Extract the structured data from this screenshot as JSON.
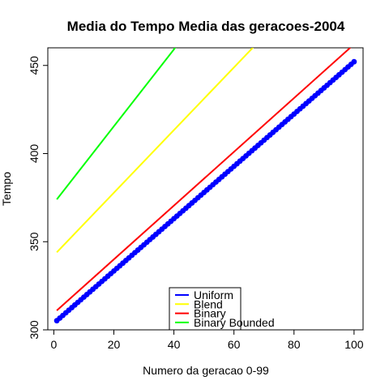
{
  "chart_data": {
    "type": "line",
    "title": "Media do Tempo Media das geracoes-2004",
    "xlabel": "Numero da geracao 0-99",
    "ylabel": "Tempo",
    "xlim": [
      -2,
      103
    ],
    "ylim": [
      300,
      460
    ],
    "xticks": [
      0,
      20,
      40,
      60,
      80,
      100
    ],
    "yticks": [
      300,
      350,
      400,
      450
    ],
    "grid": false,
    "legend_position": "bottom-center",
    "series": [
      {
        "name": "Uniform",
        "color": "#0000FF",
        "style": "points-and-line",
        "x_start": 1,
        "x_end": 100,
        "y_start": 305.2,
        "y_end": 452.1
      },
      {
        "name": "Blend",
        "color": "#FFFF00",
        "style": "line",
        "x_start": 1,
        "x_end": 100,
        "y_start": 344.0,
        "y_end": 520.0
      },
      {
        "name": "Binary",
        "color": "#FF0000",
        "style": "line",
        "x_start": 1,
        "x_end": 100,
        "y_start": 311.0,
        "y_end": 462.0
      },
      {
        "name": "Binary Bounded",
        "color": "#00FF00",
        "style": "line",
        "x_start": 1,
        "x_end": 100,
        "y_start": 374.0,
        "y_end": 590.0
      }
    ]
  }
}
